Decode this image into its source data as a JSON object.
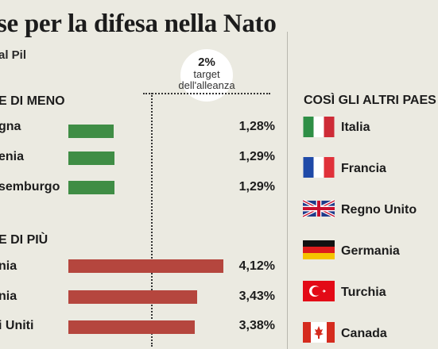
{
  "title": "se per la difesa nella Nato",
  "subtitle": "al Pil",
  "target": {
    "percent": "2%",
    "label_line1": "target",
    "label_line2": "dell'alleanza",
    "value": 2
  },
  "chart_data": {
    "type": "bar",
    "groups": [
      {
        "heading": "E DI MENO",
        "color": "#3f8d45",
        "categories": [
          "gna",
          "enia",
          "semburgo"
        ],
        "values": [
          1.28,
          1.29,
          1.29
        ],
        "labels": [
          "1,28%",
          "1,29%",
          "1,29%"
        ]
      },
      {
        "heading": "E DI PIÙ",
        "color": "#b5463e",
        "categories": [
          "nia",
          "nia",
          "i Uniti"
        ],
        "values": [
          4.12,
          3.43,
          3.38
        ],
        "labels": [
          "4,12%",
          "3,43%",
          "3,38%"
        ]
      }
    ]
  },
  "others": {
    "heading": "COSÌ GLI ALTRI PAES",
    "countries": [
      {
        "name": "Italia",
        "flag": "italy-flag-icon"
      },
      {
        "name": "Francia",
        "flag": "france-flag-icon"
      },
      {
        "name": "Regno Unito",
        "flag": "uk-flag-icon"
      },
      {
        "name": "Germania",
        "flag": "germany-flag-icon"
      },
      {
        "name": "Turchia",
        "flag": "turkey-flag-icon"
      },
      {
        "name": "Canada",
        "flag": "canada-flag-icon"
      }
    ]
  }
}
